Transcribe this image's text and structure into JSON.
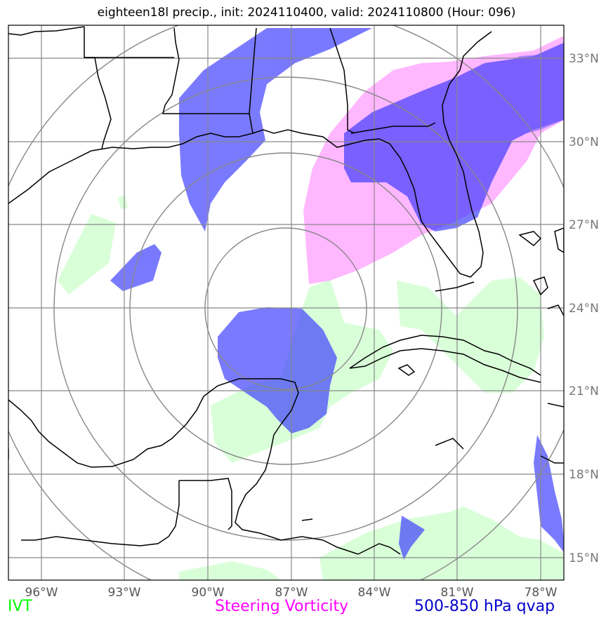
{
  "title": "eighteen18l precip., init: 2024110400, valid: 2024110800 (Hour: 096)",
  "legend": {
    "ivt": "IVT",
    "vorticity": "Steering Vorticity",
    "qvap": "500-850 hPa qvap"
  },
  "colors": {
    "ivt": "#ccffcc",
    "vorticity": "#ff99ff",
    "qvap": "#3333ff",
    "overlap": "#6633ff",
    "coast": "#000000",
    "grid": "#888888"
  },
  "longitudes": [
    "96°W",
    "93°W",
    "90°W",
    "87°W",
    "84°W",
    "81°W",
    "78°W"
  ],
  "latitudes": [
    "33°N",
    "30°N",
    "27°N",
    "24°N",
    "21°N",
    "18°N",
    "15°N"
  ]
}
